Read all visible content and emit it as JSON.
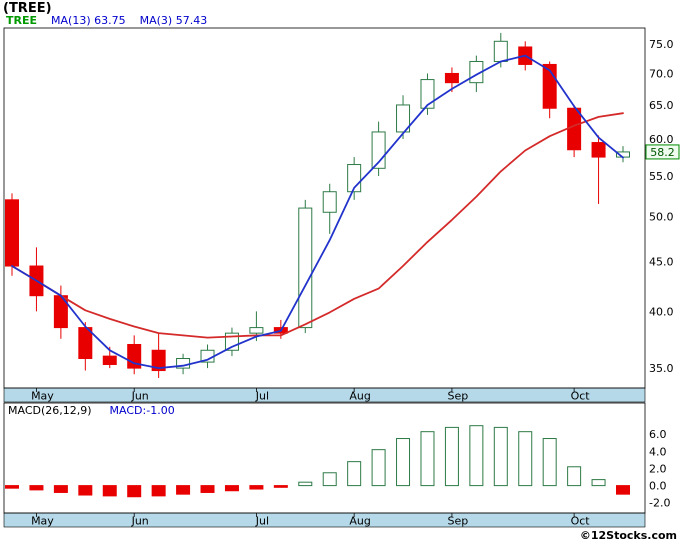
{
  "header": {
    "title": "(TREE)"
  },
  "legend": {
    "symbol": "TREE",
    "ma13": "MA(13) 63.75",
    "ma3": "MA(3) 57.43"
  },
  "macd_panel": {
    "title": "MACD(26,12,9)",
    "value": "MACD:-1.00"
  },
  "footer": {
    "copyright": "©12Stocks.com"
  },
  "colors": {
    "up_body": "#ffffff",
    "up_stroke": "#2d7a46",
    "down": "#e80000",
    "ma_slow_red": "#d42a2a",
    "ma_fast_blue": "#2233cc",
    "band": "#b5d9e8",
    "frame": "#000000",
    "axis_text": "#000000",
    "legend_symbol": "#009900",
    "legend_text": "#0000cc",
    "last_price_bg": "#eefbee",
    "last_price_border": "#008800",
    "last_price_text": "#005500",
    "macd_pos_fill": "#ffffff",
    "macd_pos_stroke": "#2d7a46",
    "macd_neg": "#e80000"
  },
  "chart_data": {
    "type": "candlestick",
    "symbol": "TREE",
    "title": "(TREE)",
    "timeframe": "weekly",
    "x_axis": {
      "months": [
        {
          "label": "May",
          "index": 1
        },
        {
          "label": "Jun",
          "index": 5
        },
        {
          "label": "Jul",
          "index": 10
        },
        {
          "label": "Aug",
          "index": 14
        },
        {
          "label": "Sep",
          "index": 18
        },
        {
          "label": "Oct",
          "index": 23
        }
      ]
    },
    "price_axis": {
      "scale": "log",
      "range": [
        33.4,
        77.9
      ],
      "ticks": [
        {
          "value": 75,
          "label": "75.0"
        },
        {
          "value": 70,
          "label": "70.0"
        },
        {
          "value": 65,
          "label": "65.0"
        },
        {
          "value": 60,
          "label": "60.0"
        },
        {
          "value": 55,
          "label": "55.0"
        },
        {
          "value": 50,
          "label": "50.0"
        },
        {
          "value": 45,
          "label": "45.0"
        },
        {
          "value": 40,
          "label": "40.0"
        },
        {
          "value": 35,
          "label": "35.0"
        }
      ],
      "last_price": {
        "value": 58.2,
        "label": "58.2"
      }
    },
    "candles": [
      {
        "o": 52.0,
        "h": 52.8,
        "l": 43.5,
        "c": 44.5
      },
      {
        "o": 44.5,
        "h": 46.5,
        "l": 40.0,
        "c": 41.5
      },
      {
        "o": 41.5,
        "h": 42.5,
        "l": 37.5,
        "c": 38.5
      },
      {
        "o": 38.5,
        "h": 39.0,
        "l": 34.8,
        "c": 35.8
      },
      {
        "o": 36.0,
        "h": 36.8,
        "l": 35.0,
        "c": 35.3
      },
      {
        "o": 37.0,
        "h": 37.8,
        "l": 34.5,
        "c": 35.0
      },
      {
        "o": 36.5,
        "h": 38.0,
        "l": 34.2,
        "c": 34.8
      },
      {
        "o": 35.0,
        "h": 36.2,
        "l": 34.5,
        "c": 35.8
      },
      {
        "o": 35.5,
        "h": 37.0,
        "l": 35.0,
        "c": 36.5
      },
      {
        "o": 36.5,
        "h": 38.5,
        "l": 36.0,
        "c": 38.0
      },
      {
        "o": 38.0,
        "h": 40.0,
        "l": 37.3,
        "c": 38.5
      },
      {
        "o": 38.5,
        "h": 39.2,
        "l": 37.5,
        "c": 38.0
      },
      {
        "o": 38.5,
        "h": 52.0,
        "l": 38.0,
        "c": 51.0
      },
      {
        "o": 50.5,
        "h": 54.0,
        "l": 48.0,
        "c": 53.0
      },
      {
        "o": 53.0,
        "h": 57.5,
        "l": 52.0,
        "c": 56.5
      },
      {
        "o": 56.0,
        "h": 62.5,
        "l": 55.0,
        "c": 61.0
      },
      {
        "o": 61.0,
        "h": 66.5,
        "l": 60.0,
        "c": 65.0
      },
      {
        "o": 64.5,
        "h": 70.0,
        "l": 63.5,
        "c": 69.0
      },
      {
        "o": 70.0,
        "h": 71.0,
        "l": 67.0,
        "c": 68.5
      },
      {
        "o": 68.5,
        "h": 73.0,
        "l": 67.0,
        "c": 72.0
      },
      {
        "o": 72.0,
        "h": 77.0,
        "l": 71.0,
        "c": 75.5
      },
      {
        "o": 74.5,
        "h": 75.5,
        "l": 70.5,
        "c": 71.5
      },
      {
        "o": 71.5,
        "h": 72.0,
        "l": 63.0,
        "c": 64.5
      },
      {
        "o": 64.5,
        "h": 65.0,
        "l": 57.5,
        "c": 58.5
      },
      {
        "o": 59.5,
        "h": 60.5,
        "l": 51.5,
        "c": 57.5
      },
      {
        "o": 57.5,
        "h": 59.0,
        "l": 56.8,
        "c": 58.2
      }
    ],
    "overlays": [
      {
        "name": "MA(13)",
        "value": 63.75,
        "color_key": "ma_slow_red",
        "values": [
          44.5,
          43.0,
          41.5,
          40.1,
          39.3,
          38.6,
          38.0,
          37.8,
          37.6,
          37.7,
          37.8,
          37.8,
          38.8,
          39.9,
          41.2,
          42.2,
          44.5,
          47.1,
          49.6,
          52.4,
          55.6,
          58.4,
          60.4,
          61.9,
          63.2,
          63.75
        ]
      },
      {
        "name": "MA(3)",
        "value": 57.43,
        "color_key": "ma_fast_blue",
        "values": [
          44.5,
          43.0,
          41.5,
          38.6,
          36.5,
          35.4,
          35.0,
          35.2,
          35.7,
          36.8,
          37.7,
          38.2,
          42.5,
          47.3,
          53.5,
          56.8,
          60.8,
          65.0,
          67.5,
          69.8,
          72.0,
          73.0,
          70.5,
          64.8,
          60.2,
          57.43
        ]
      }
    ],
    "macd": {
      "title": "MACD(26,12,9)",
      "last_value": -1.0,
      "range": [
        -3.2,
        9.65
      ],
      "ticks": [
        {
          "value": 6,
          "label": "6.0"
        },
        {
          "value": 4,
          "label": "4.0"
        },
        {
          "value": 2,
          "label": "2.0"
        },
        {
          "value": 0,
          "label": "0.0"
        },
        {
          "value": -2,
          "label": "-2.0"
        }
      ],
      "values": [
        -0.3,
        -0.5,
        -0.8,
        -1.1,
        -1.2,
        -1.3,
        -1.2,
        -1.0,
        -0.8,
        -0.6,
        -0.4,
        -0.2,
        0.4,
        1.5,
        2.8,
        4.2,
        5.5,
        6.3,
        6.8,
        7.0,
        6.8,
        6.3,
        5.5,
        2.2,
        0.7,
        -1.0
      ]
    }
  }
}
